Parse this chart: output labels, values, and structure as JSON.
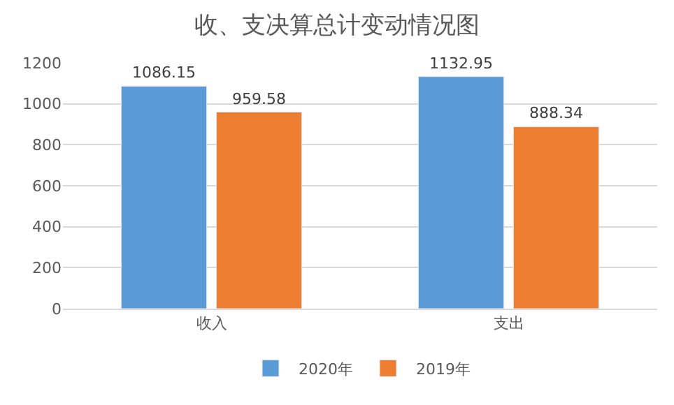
{
  "chart_data": {
    "type": "bar",
    "title": "收、支决算总计变动情况图",
    "categories": [
      "收入",
      "支出"
    ],
    "series": [
      {
        "name": "2020年",
        "color": "#5b9bd5",
        "values": [
          1086.15,
          1132.95
        ]
      },
      {
        "name": "2019年",
        "color": "#ed7d31",
        "values": [
          959.58,
          888.34
        ]
      }
    ],
    "ylim": [
      0,
      1200
    ],
    "yticks": [
      0,
      200,
      400,
      600,
      800,
      1000,
      1200
    ],
    "grid": "y",
    "legend": "bottom",
    "data_labels": true
  }
}
